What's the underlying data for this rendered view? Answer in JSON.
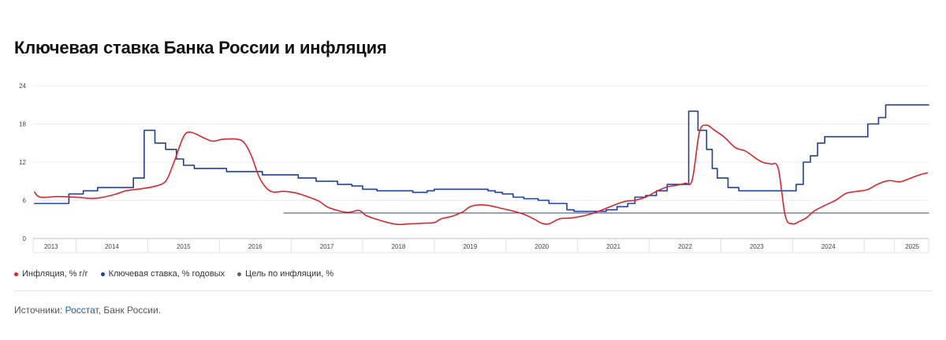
{
  "title": "Ключевая ставка Банка России и инфляция",
  "sources": {
    "prefix": "Источники: ",
    "link": "Росстат",
    "suffix": ", Банк России."
  },
  "colors": {
    "inflation": "#e0222d",
    "key_rate": "#1f3f99",
    "target": "#5a6272",
    "grid": "#ececec",
    "tick": "#444444"
  },
  "chart_data": {
    "type": "line",
    "title": "Ключевая ставка Банка России и инфляция",
    "xlabel": "",
    "ylabel": "",
    "xlim": [
      2012.9,
      2025.4
    ],
    "ylim": [
      0,
      24
    ],
    "yticks": [
      0,
      6,
      12,
      18,
      24
    ],
    "xticks": [
      {
        "label": "2013",
        "at": 2013.15
      },
      {
        "label": "2014",
        "at": 2014.0
      },
      {
        "label": "2015",
        "at": 2015.0
      },
      {
        "label": "2016",
        "at": 2016.0
      },
      {
        "label": "2017",
        "at": 2017.0
      },
      {
        "label": "2018",
        "at": 2018.0
      },
      {
        "label": "2019",
        "at": 2019.0
      },
      {
        "label": "2020",
        "at": 2020.0
      },
      {
        "label": "2021",
        "at": 2021.0
      },
      {
        "label": "2022",
        "at": 2022.0
      },
      {
        "label": "2023",
        "at": 2023.0
      },
      {
        "label": "2024",
        "at": 2024.0
      },
      {
        "label": "2025",
        "at": 2025.17
      }
    ],
    "grid": true,
    "legend_position": "bottom-left",
    "series": [
      {
        "key": "inflation",
        "name": "Инфляция, % г/г",
        "style": "smooth",
        "points": [
          [
            2012.92,
            7.3
          ],
          [
            2013.0,
            6.5
          ],
          [
            2013.25,
            6.6
          ],
          [
            2013.5,
            6.5
          ],
          [
            2013.75,
            6.3
          ],
          [
            2014.0,
            6.8
          ],
          [
            2014.2,
            7.5
          ],
          [
            2014.4,
            7.8
          ],
          [
            2014.6,
            8.2
          ],
          [
            2014.75,
            9.0
          ],
          [
            2014.85,
            11.5
          ],
          [
            2015.0,
            16.0
          ],
          [
            2015.1,
            16.7
          ],
          [
            2015.25,
            16.0
          ],
          [
            2015.4,
            15.3
          ],
          [
            2015.55,
            15.6
          ],
          [
            2015.75,
            15.6
          ],
          [
            2015.85,
            15.0
          ],
          [
            2015.95,
            12.9
          ],
          [
            2016.05,
            9.8
          ],
          [
            2016.15,
            8.0
          ],
          [
            2016.25,
            7.3
          ],
          [
            2016.4,
            7.4
          ],
          [
            2016.55,
            7.2
          ],
          [
            2016.75,
            6.5
          ],
          [
            2016.9,
            5.8
          ],
          [
            2017.0,
            5.0
          ],
          [
            2017.15,
            4.4
          ],
          [
            2017.3,
            4.1
          ],
          [
            2017.45,
            4.4
          ],
          [
            2017.55,
            3.6
          ],
          [
            2017.7,
            3.0
          ],
          [
            2017.85,
            2.5
          ],
          [
            2018.0,
            2.2
          ],
          [
            2018.15,
            2.3
          ],
          [
            2018.35,
            2.4
          ],
          [
            2018.5,
            2.5
          ],
          [
            2018.6,
            3.1
          ],
          [
            2018.75,
            3.5
          ],
          [
            2018.9,
            4.2
          ],
          [
            2019.0,
            5.0
          ],
          [
            2019.15,
            5.3
          ],
          [
            2019.3,
            5.1
          ],
          [
            2019.45,
            4.7
          ],
          [
            2019.6,
            4.3
          ],
          [
            2019.75,
            3.8
          ],
          [
            2019.9,
            3.0
          ],
          [
            2020.0,
            2.4
          ],
          [
            2020.1,
            2.3
          ],
          [
            2020.25,
            3.1
          ],
          [
            2020.4,
            3.2
          ],
          [
            2020.6,
            3.6
          ],
          [
            2020.8,
            4.3
          ],
          [
            2021.0,
            5.2
          ],
          [
            2021.15,
            5.8
          ],
          [
            2021.3,
            6.0
          ],
          [
            2021.45,
            6.5
          ],
          [
            2021.6,
            7.4
          ],
          [
            2021.75,
            8.1
          ],
          [
            2021.9,
            8.4
          ],
          [
            2022.0,
            8.7
          ],
          [
            2022.1,
            9.2
          ],
          [
            2022.2,
            16.7
          ],
          [
            2022.3,
            17.8
          ],
          [
            2022.4,
            17.1
          ],
          [
            2022.55,
            15.9
          ],
          [
            2022.7,
            14.3
          ],
          [
            2022.85,
            13.7
          ],
          [
            2023.0,
            12.5
          ],
          [
            2023.1,
            11.9
          ],
          [
            2023.2,
            11.7
          ],
          [
            2023.3,
            11.0
          ],
          [
            2023.4,
            3.5
          ],
          [
            2023.5,
            2.3
          ],
          [
            2023.6,
            2.7
          ],
          [
            2023.7,
            3.3
          ],
          [
            2023.8,
            4.3
          ],
          [
            2023.95,
            5.2
          ],
          [
            2024.1,
            6.0
          ],
          [
            2024.25,
            7.1
          ],
          [
            2024.4,
            7.4
          ],
          [
            2024.55,
            7.7
          ],
          [
            2024.7,
            8.6
          ],
          [
            2024.85,
            9.1
          ],
          [
            2025.0,
            8.9
          ],
          [
            2025.15,
            9.5
          ],
          [
            2025.3,
            10.1
          ],
          [
            2025.38,
            10.3
          ]
        ]
      },
      {
        "key": "key_rate",
        "name": "Ключевая ставка, % годовых",
        "style": "step",
        "points": [
          [
            2012.92,
            5.5
          ],
          [
            2013.4,
            7.0
          ],
          [
            2013.6,
            7.5
          ],
          [
            2013.8,
            8.0
          ],
          [
            2014.3,
            9.5
          ],
          [
            2014.45,
            17.0
          ],
          [
            2014.6,
            15.0
          ],
          [
            2014.75,
            14.0
          ],
          [
            2014.9,
            12.5
          ],
          [
            2015.0,
            11.5
          ],
          [
            2015.15,
            11.0
          ],
          [
            2015.6,
            10.5
          ],
          [
            2016.1,
            10.0
          ],
          [
            2016.6,
            9.5
          ],
          [
            2016.85,
            9.0
          ],
          [
            2017.0,
            9.0
          ],
          [
            2017.15,
            8.5
          ],
          [
            2017.35,
            8.25
          ],
          [
            2017.5,
            7.75
          ],
          [
            2017.7,
            7.5
          ],
          [
            2018.2,
            7.25
          ],
          [
            2018.4,
            7.5
          ],
          [
            2018.5,
            7.75
          ],
          [
            2019.25,
            7.5
          ],
          [
            2019.35,
            7.25
          ],
          [
            2019.45,
            7.0
          ],
          [
            2019.6,
            6.5
          ],
          [
            2019.75,
            6.25
          ],
          [
            2019.95,
            6.0
          ],
          [
            2020.1,
            5.5
          ],
          [
            2020.35,
            4.5
          ],
          [
            2020.45,
            4.25
          ],
          [
            2020.9,
            4.5
          ],
          [
            2021.05,
            5.0
          ],
          [
            2021.2,
            5.5
          ],
          [
            2021.3,
            6.5
          ],
          [
            2021.45,
            6.75
          ],
          [
            2021.6,
            7.5
          ],
          [
            2021.75,
            8.5
          ],
          [
            2022.05,
            20.0
          ],
          [
            2022.18,
            17.0
          ],
          [
            2022.3,
            14.0
          ],
          [
            2022.38,
            11.0
          ],
          [
            2022.45,
            9.5
          ],
          [
            2022.6,
            8.0
          ],
          [
            2022.75,
            7.5
          ],
          [
            2023.55,
            8.5
          ],
          [
            2023.65,
            12.0
          ],
          [
            2023.75,
            13.0
          ],
          [
            2023.85,
            15.0
          ],
          [
            2023.95,
            16.0
          ],
          [
            2024.55,
            18.0
          ],
          [
            2024.7,
            19.0
          ],
          [
            2024.8,
            21.0
          ],
          [
            2025.4,
            21.0
          ]
        ]
      },
      {
        "key": "target",
        "name": "Цель по инфляции, %",
        "style": "flat",
        "points": [
          [
            2016.4,
            4.0
          ],
          [
            2025.4,
            4.0
          ]
        ]
      }
    ]
  }
}
